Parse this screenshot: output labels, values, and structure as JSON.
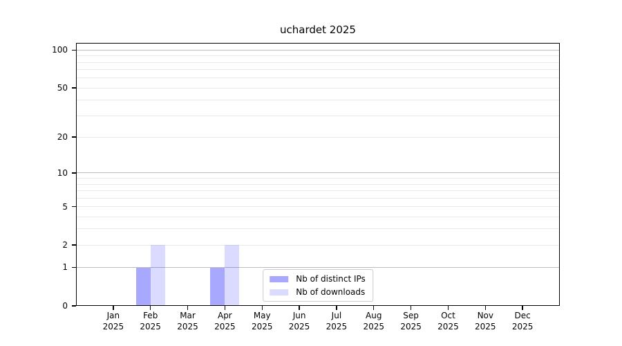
{
  "chart_data": {
    "type": "bar",
    "title": "uchardet 2025",
    "categories": [
      "Jan 2025",
      "Feb 2025",
      "Mar 2025",
      "Apr 2025",
      "May 2025",
      "Jun 2025",
      "Jul 2025",
      "Aug 2025",
      "Sep 2025",
      "Oct 2025",
      "Nov 2025",
      "Dec 2025"
    ],
    "series": [
      {
        "name": "Nb of distinct IPs",
        "color": "#0000ff",
        "alpha": 0.34,
        "values": [
          0,
          1,
          0,
          1,
          0,
          0,
          0,
          0,
          0,
          0,
          0,
          0
        ]
      },
      {
        "name": "Nb of downloads",
        "color": "#0000ff",
        "alpha": 0.14,
        "values": [
          0,
          2,
          0,
          2,
          0,
          0,
          0,
          0,
          0,
          0,
          0,
          0
        ]
      }
    ],
    "xlabel": "",
    "ylabel": "",
    "y_ticks": [
      0,
      1,
      2,
      5,
      10,
      20,
      50,
      100
    ],
    "y_scale": "log10(value+1)",
    "ylim": [
      0,
      114
    ],
    "grid": {
      "major_lines": [
        1,
        10,
        100
      ],
      "minor_lines": [
        2,
        3,
        4,
        5,
        6,
        7,
        8,
        9,
        20,
        30,
        40,
        50,
        60,
        70,
        80,
        90
      ]
    },
    "legend": {
      "position": "lower center"
    },
    "colors": {
      "grid_major": "#bcbcbc",
      "grid_minor": "#eaeaea",
      "axis": "#000000",
      "background": "#ffffff"
    }
  }
}
